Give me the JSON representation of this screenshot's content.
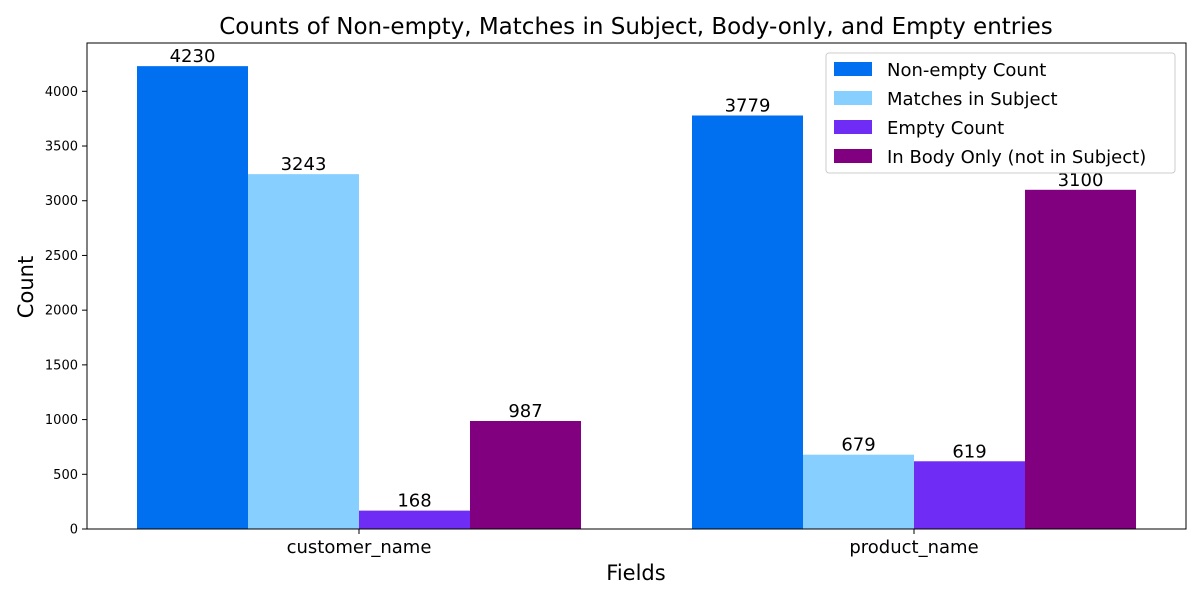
{
  "chart_data": {
    "type": "bar",
    "title": "Counts of Non-empty, Matches in Subject, Body-only, and Empty entries",
    "xlabel": "Fields",
    "ylabel": "Count",
    "categories": [
      "customer_name",
      "product_name"
    ],
    "series": [
      {
        "name": "Non-empty Count",
        "color": "#0070f0",
        "values": [
          4230,
          3779
        ]
      },
      {
        "name": "Matches in Subject",
        "color": "#87cfff",
        "values": [
          3243,
          679
        ]
      },
      {
        "name": "Empty Count",
        "color": "#6f2cf5",
        "values": [
          168,
          619
        ]
      },
      {
        "name": "In Body Only (not in Subject)",
        "color": "#800080",
        "values": [
          987,
          3100
        ]
      }
    ],
    "ylim": [
      0,
      4441.5
    ],
    "yticks": [
      0,
      500,
      1000,
      1500,
      2000,
      2500,
      3000,
      3500,
      4000
    ],
    "legend_position": "top-right",
    "grid": false
  }
}
